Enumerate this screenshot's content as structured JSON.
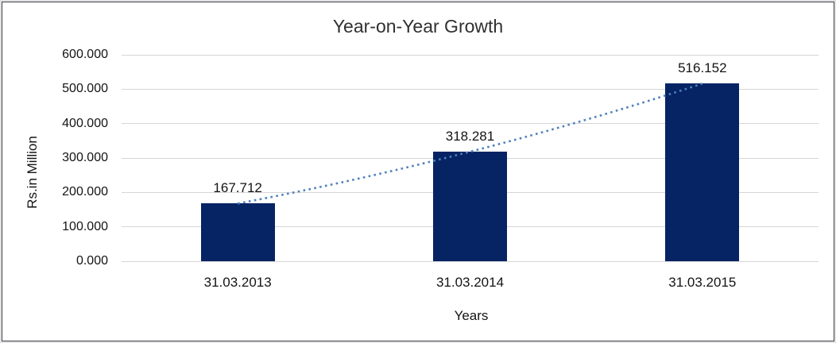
{
  "frame": {
    "outer_background": "#e2e2e2",
    "border_color": "#43434c",
    "plot_background": "#ffffff"
  },
  "chart_data": {
    "type": "bar",
    "title": "Year-on-Year Growth",
    "xlabel": "Years",
    "ylabel": "Rs.in Million",
    "categories": [
      "31.03.2013",
      "31.03.2014",
      "31.03.2015"
    ],
    "values": [
      167.712,
      318.281,
      516.152
    ],
    "value_labels": [
      "167.712",
      "318.281",
      "516.152"
    ],
    "ylim": [
      0,
      600
    ],
    "ytick_step": 100,
    "ytick_labels": [
      "0.000",
      "100.000",
      "200.000",
      "300.000",
      "400.000",
      "500.000",
      "600.000"
    ],
    "grid": true,
    "legend": "none",
    "bar_color": "#062364",
    "gridline_color": "#d6d6d6",
    "text_color": "#141414",
    "title_color": "#303030",
    "trendline": {
      "style": "dotted",
      "color": "#4f81bd"
    }
  }
}
